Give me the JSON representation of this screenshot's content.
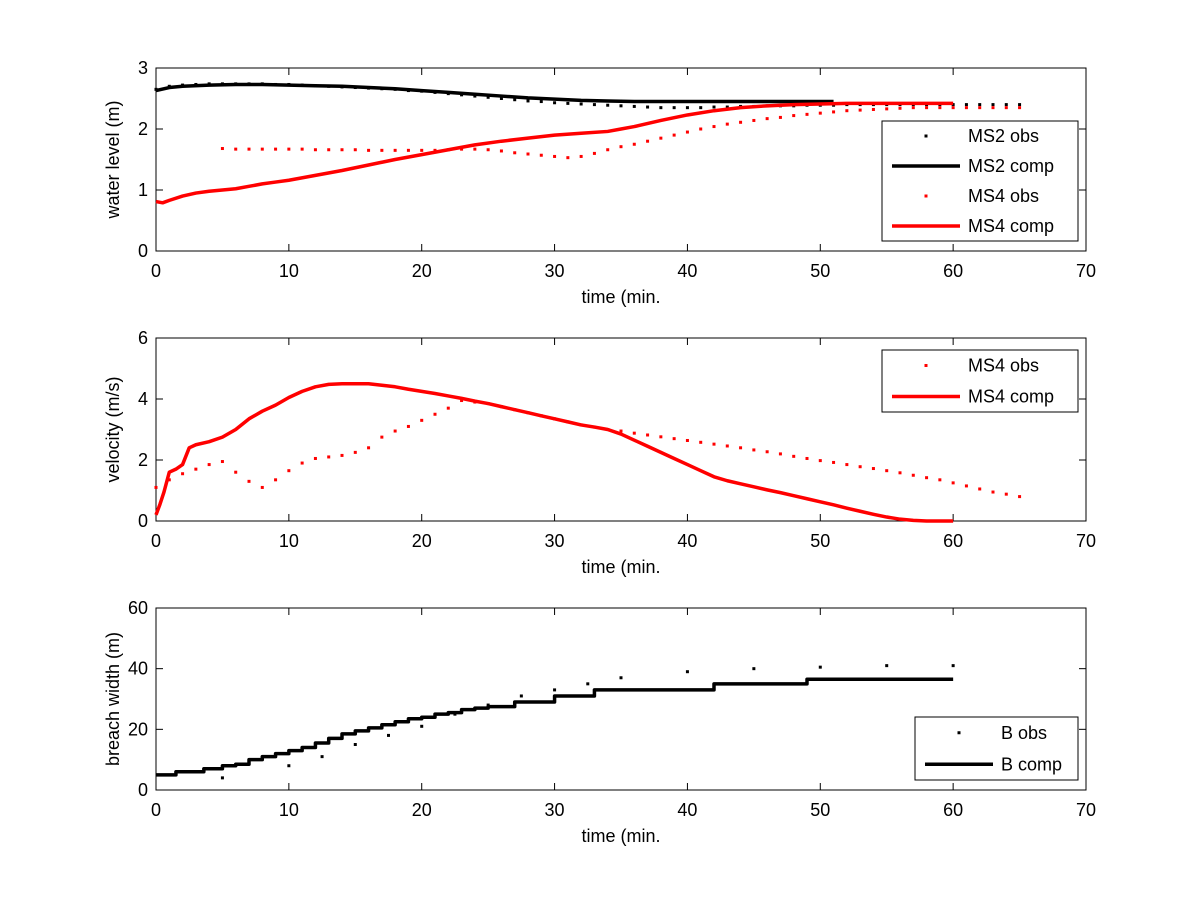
{
  "chart_data": [
    {
      "type": "line",
      "xlabel": "time (min.",
      "ylabel": "water level (m)",
      "xlim": [
        0,
        70
      ],
      "ylim": [
        0,
        3
      ],
      "xticks": [
        0,
        10,
        20,
        30,
        40,
        50,
        60,
        70
      ],
      "yticks": [
        0,
        1,
        2,
        3
      ],
      "grid": false,
      "legend_position": "bottom-right",
      "series": [
        {
          "name": "MS2 obs",
          "style": "markers",
          "color": "#000000",
          "x": [
            0,
            1,
            2,
            3,
            4,
            5,
            6,
            7,
            8,
            9,
            10,
            11,
            12,
            13,
            14,
            15,
            16,
            17,
            18,
            19,
            20,
            21,
            22,
            23,
            24,
            25,
            26,
            27,
            28,
            29,
            30,
            31,
            32,
            33,
            34,
            35,
            36,
            37,
            38,
            39,
            40,
            41,
            42,
            43,
            44,
            45,
            46,
            47,
            48,
            49,
            50,
            51,
            52,
            53,
            54,
            55,
            56,
            57,
            58,
            59,
            60,
            61,
            62,
            63,
            64,
            65
          ],
          "y": [
            2.65,
            2.7,
            2.72,
            2.73,
            2.74,
            2.74,
            2.74,
            2.74,
            2.74,
            2.73,
            2.73,
            2.72,
            2.71,
            2.7,
            2.69,
            2.68,
            2.67,
            2.66,
            2.65,
            2.63,
            2.62,
            2.6,
            2.58,
            2.56,
            2.54,
            2.52,
            2.5,
            2.48,
            2.46,
            2.45,
            2.43,
            2.42,
            2.41,
            2.4,
            2.39,
            2.38,
            2.37,
            2.36,
            2.35,
            2.35,
            2.35,
            2.35,
            2.36,
            2.36,
            2.37,
            2.37,
            2.38,
            2.38,
            2.38,
            2.39,
            2.39,
            2.39,
            2.4,
            2.4,
            2.4,
            2.4,
            2.4,
            2.4,
            2.4,
            2.4,
            2.4,
            2.4,
            2.4,
            2.4,
            2.4,
            2.4
          ]
        },
        {
          "name": "MS2 comp",
          "style": "line",
          "color": "#000000",
          "x": [
            0,
            1,
            2,
            4,
            6,
            8,
            10,
            12,
            14,
            16,
            18,
            20,
            22,
            24,
            26,
            28,
            30,
            32,
            34,
            36,
            38,
            40,
            42,
            44,
            46,
            48,
            50,
            51
          ],
          "y": [
            2.63,
            2.68,
            2.7,
            2.72,
            2.73,
            2.73,
            2.72,
            2.71,
            2.7,
            2.68,
            2.66,
            2.63,
            2.6,
            2.57,
            2.54,
            2.51,
            2.49,
            2.47,
            2.46,
            2.45,
            2.45,
            2.45,
            2.45,
            2.45,
            2.45,
            2.45,
            2.45,
            2.45
          ]
        },
        {
          "name": "MS4 obs",
          "style": "markers",
          "color": "#ff0000",
          "x": [
            5,
            6,
            7,
            8,
            9,
            10,
            11,
            12,
            13,
            14,
            15,
            16,
            17,
            18,
            19,
            20,
            21,
            22,
            23,
            24,
            25,
            26,
            27,
            28,
            29,
            30,
            31,
            32,
            33,
            34,
            35,
            36,
            37,
            38,
            39,
            40,
            41,
            42,
            43,
            44,
            45,
            46,
            47,
            48,
            49,
            50,
            51,
            52,
            53,
            54,
            55,
            56,
            57,
            58,
            59,
            60,
            61,
            62,
            63,
            64,
            65
          ],
          "y": [
            1.68,
            1.67,
            1.67,
            1.67,
            1.67,
            1.67,
            1.67,
            1.66,
            1.66,
            1.66,
            1.66,
            1.65,
            1.65,
            1.65,
            1.65,
            1.65,
            1.65,
            1.66,
            1.67,
            1.67,
            1.66,
            1.64,
            1.61,
            1.59,
            1.57,
            1.55,
            1.53,
            1.55,
            1.6,
            1.66,
            1.71,
            1.75,
            1.8,
            1.85,
            1.9,
            1.95,
            2.0,
            2.04,
            2.08,
            2.11,
            2.14,
            2.17,
            2.19,
            2.22,
            2.24,
            2.26,
            2.28,
            2.3,
            2.31,
            2.32,
            2.33,
            2.34,
            2.35,
            2.35,
            2.35,
            2.35,
            2.35,
            2.35,
            2.35,
            2.35,
            2.35
          ]
        },
        {
          "name": "MS4 comp",
          "style": "line",
          "color": "#ff0000",
          "x": [
            0,
            0.5,
            1,
            2,
            3,
            4,
            5,
            6,
            7,
            8,
            9,
            10,
            12,
            14,
            16,
            18,
            20,
            22,
            24,
            26,
            28,
            30,
            32,
            34,
            35,
            36,
            38,
            40,
            42,
            44,
            46,
            48,
            50,
            52,
            54,
            56,
            58,
            60
          ],
          "y": [
            0.81,
            0.79,
            0.83,
            0.9,
            0.95,
            0.98,
            1.0,
            1.02,
            1.06,
            1.1,
            1.13,
            1.16,
            1.24,
            1.32,
            1.41,
            1.5,
            1.58,
            1.66,
            1.74,
            1.8,
            1.85,
            1.9,
            1.93,
            1.96,
            2.0,
            2.04,
            2.14,
            2.23,
            2.3,
            2.35,
            2.38,
            2.4,
            2.41,
            2.42,
            2.42,
            2.42,
            2.42,
            2.42
          ]
        }
      ]
    },
    {
      "type": "line",
      "xlabel": "time (min.",
      "ylabel": "velocity (m/s)",
      "xlim": [
        0,
        70
      ],
      "ylim": [
        0,
        6
      ],
      "xticks": [
        0,
        10,
        20,
        30,
        40,
        50,
        60,
        70
      ],
      "yticks": [
        0,
        2,
        4,
        6
      ],
      "grid": false,
      "legend_position": "top-right",
      "series": [
        {
          "name": "MS4 obs",
          "style": "markers",
          "color": "#ff0000",
          "x": [
            0,
            1,
            2,
            3,
            4,
            5,
            6,
            7,
            8,
            9,
            10,
            11,
            12,
            13,
            14,
            15,
            16,
            17,
            18,
            19,
            20,
            21,
            22,
            23,
            24,
            25,
            26,
            27,
            28,
            29,
            30,
            31,
            32,
            33,
            34,
            35,
            36,
            37,
            38,
            39,
            40,
            41,
            42,
            43,
            44,
            45,
            46,
            47,
            48,
            49,
            50,
            51,
            52,
            53,
            54,
            55,
            56,
            57,
            58,
            59,
            60,
            61,
            62,
            63,
            64,
            65
          ],
          "y": [
            1.1,
            1.35,
            1.55,
            1.7,
            1.85,
            1.95,
            1.6,
            1.3,
            1.1,
            1.35,
            1.65,
            1.9,
            2.05,
            2.1,
            2.15,
            2.25,
            2.4,
            2.75,
            2.95,
            3.1,
            3.3,
            3.5,
            3.7,
            3.95,
            3.9,
            3.85,
            3.75,
            3.65,
            3.55,
            3.45,
            3.35,
            3.25,
            3.15,
            3.08,
            3.0,
            2.95,
            2.88,
            2.82,
            2.76,
            2.7,
            2.64,
            2.58,
            2.52,
            2.46,
            2.4,
            2.33,
            2.27,
            2.2,
            2.12,
            2.05,
            1.98,
            1.92,
            1.85,
            1.78,
            1.72,
            1.65,
            1.58,
            1.5,
            1.42,
            1.35,
            1.25,
            1.15,
            1.05,
            0.95,
            0.88,
            0.8
          ]
        },
        {
          "name": "MS4 comp",
          "style": "line",
          "color": "#ff0000",
          "x": [
            0,
            0.3,
            0.6,
            1,
            1.5,
            2,
            2.5,
            3,
            4,
            5,
            6,
            7,
            8,
            9,
            10,
            11,
            12,
            13,
            14,
            15,
            16,
            17,
            18,
            19,
            20,
            21,
            22,
            23,
            24,
            25,
            26,
            27,
            28,
            29,
            30,
            31,
            32,
            33,
            34,
            35,
            36,
            37,
            38,
            39,
            40,
            41,
            42,
            43,
            44,
            45,
            46,
            47,
            48,
            49,
            50,
            51,
            52,
            53,
            54,
            55,
            56,
            57,
            58,
            59,
            60
          ],
          "y": [
            0.2,
            0.55,
            0.95,
            1.6,
            1.7,
            1.85,
            2.4,
            2.5,
            2.6,
            2.75,
            3.0,
            3.35,
            3.6,
            3.8,
            4.05,
            4.25,
            4.4,
            4.48,
            4.5,
            4.5,
            4.5,
            4.45,
            4.4,
            4.32,
            4.25,
            4.18,
            4.1,
            4.02,
            3.93,
            3.85,
            3.75,
            3.65,
            3.55,
            3.45,
            3.35,
            3.25,
            3.15,
            3.08,
            3.0,
            2.85,
            2.65,
            2.45,
            2.25,
            2.05,
            1.85,
            1.65,
            1.45,
            1.32,
            1.22,
            1.12,
            1.02,
            0.93,
            0.83,
            0.73,
            0.63,
            0.53,
            0.42,
            0.32,
            0.22,
            0.13,
            0.06,
            0.02,
            0.0,
            0.0,
            0.0
          ]
        }
      ]
    },
    {
      "type": "line",
      "xlabel": "time (min.",
      "ylabel": "breach width (m)",
      "xlim": [
        0,
        70
      ],
      "ylim": [
        0,
        60
      ],
      "xticks": [
        0,
        10,
        20,
        30,
        40,
        50,
        60,
        70
      ],
      "yticks": [
        0,
        20,
        40,
        60
      ],
      "grid": false,
      "legend_position": "bottom-right",
      "series": [
        {
          "name": "B obs",
          "style": "markers",
          "color": "#000000",
          "x": [
            5,
            10,
            12.5,
            15,
            17.5,
            20,
            22.5,
            25,
            27.5,
            30,
            32.5,
            35,
            40,
            45,
            50,
            55,
            60
          ],
          "y": [
            4,
            8,
            11,
            15,
            18,
            21,
            25,
            28,
            31,
            33,
            35,
            37,
            39,
            40,
            40.5,
            41,
            41
          ]
        },
        {
          "name": "B comp",
          "style": "step",
          "color": "#000000",
          "x": [
            0,
            1,
            1.5,
            3,
            3.6,
            5,
            6,
            7,
            8,
            9,
            10,
            11,
            12,
            13,
            14,
            15,
            16,
            17,
            18,
            19,
            20,
            21,
            22,
            23,
            24,
            25,
            26,
            27,
            28,
            29,
            30,
            31,
            32,
            33,
            41,
            42,
            48,
            49,
            60
          ],
          "y": [
            5,
            5,
            6,
            6,
            7,
            8,
            8.5,
            10,
            11,
            12,
            13,
            14,
            15.5,
            17,
            18.5,
            19.5,
            20.5,
            21.5,
            22.5,
            23.5,
            24,
            25,
            25.5,
            26.5,
            27,
            27.5,
            27.5,
            29,
            29,
            29,
            31,
            31,
            31,
            33,
            33,
            35,
            35,
            36.5,
            36.5
          ]
        }
      ]
    }
  ]
}
